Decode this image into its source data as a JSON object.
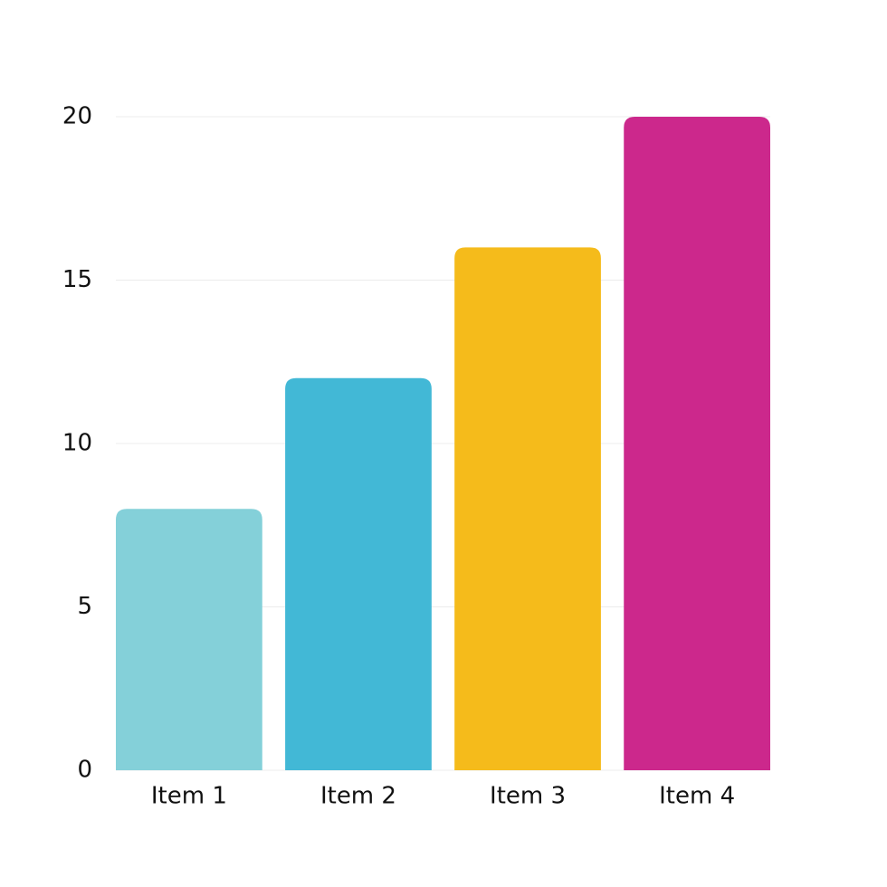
{
  "chart_data": {
    "type": "bar",
    "categories": [
      "Item 1",
      "Item 2",
      "Item 3",
      "Item 4"
    ],
    "values": [
      8,
      12,
      16,
      20
    ],
    "colors": [
      "#84d0d9",
      "#42b8d6",
      "#f5bb1b",
      "#cc288c"
    ],
    "ylim": [
      0,
      20
    ],
    "yticks": [
      0,
      5,
      10,
      15,
      20
    ],
    "grid": true
  }
}
